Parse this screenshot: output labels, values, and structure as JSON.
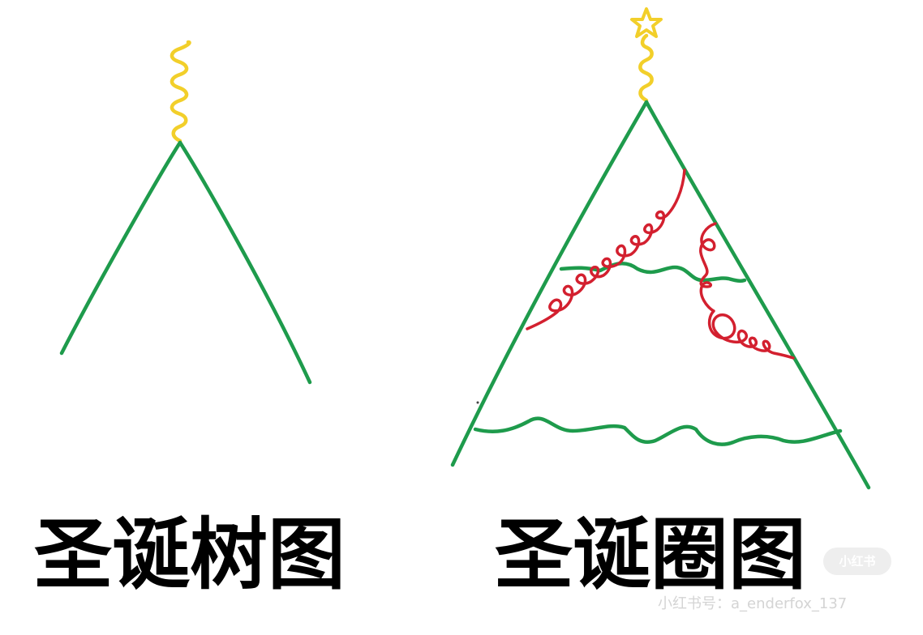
{
  "captions": {
    "left": "圣诞树图",
    "right": "圣诞圈图"
  },
  "watermark": {
    "badge": "小红书",
    "text": "小红书号：a_enderfox_137"
  },
  "colors": {
    "background": "#ffffff",
    "tree_outline": "#1e9b4c",
    "trunk_wire": "#f2cf2a",
    "star": "#f2cf2a",
    "ornament_loops": "#d3202f",
    "caption_text": "#000000",
    "watermark": "#d4d4d4"
  },
  "icons": {
    "star": "star-icon"
  }
}
